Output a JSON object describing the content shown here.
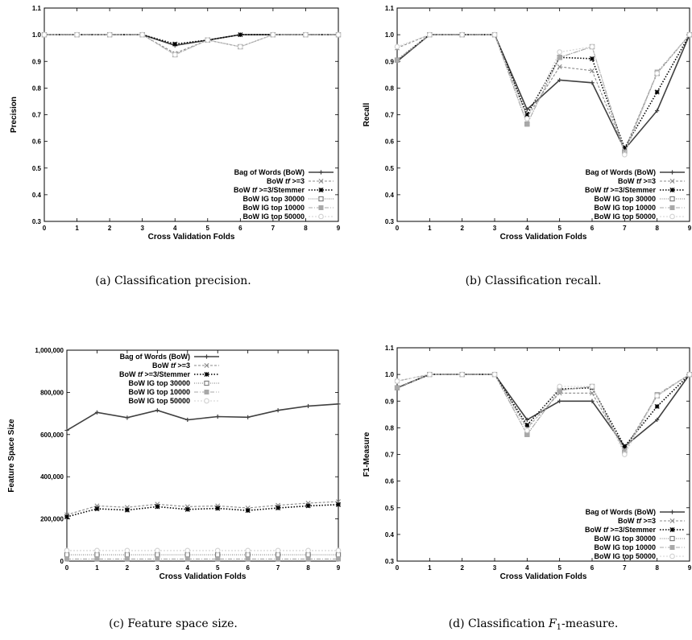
{
  "chart_data": [
    {
      "id": "a",
      "type": "line",
      "caption": "(a) Classification precision.",
      "xlabel": "Cross Validation Folds",
      "ylabel": "Precision",
      "xlim": [
        0,
        9
      ],
      "ylim": [
        0.3,
        1.1
      ],
      "xticks": [
        "0",
        "1",
        "2",
        "3",
        "4",
        "5",
        "6",
        "7",
        "8",
        "9"
      ],
      "yticks": [
        "0.3",
        "0.4",
        "0.5",
        "0.6",
        "0.7",
        "0.8",
        "0.9",
        "1.0",
        "1.1"
      ],
      "legend_position": "bottom-right",
      "x": [
        0,
        1,
        2,
        3,
        4,
        5,
        6,
        7,
        8,
        9
      ],
      "series": [
        {
          "name": "Bag of Words (BoW)",
          "values": [
            1.0,
            1.0,
            1.0,
            1.0,
            0.96,
            0.98,
            1.0,
            1.0,
            1.0,
            1.0
          ]
        },
        {
          "name": "BoW tf >=3",
          "values": [
            1.0,
            1.0,
            1.0,
            1.0,
            0.93,
            0.98,
            0.955,
            1.0,
            1.0,
            1.0
          ]
        },
        {
          "name": "BoW tf >=3/Stemmer",
          "values": [
            1.0,
            1.0,
            1.0,
            1.0,
            0.965,
            0.98,
            1.0,
            1.0,
            1.0,
            1.0
          ]
        },
        {
          "name": "BoW IG top 30000",
          "values": [
            1.0,
            1.0,
            1.0,
            1.0,
            0.925,
            0.98,
            0.955,
            1.0,
            1.0,
            1.0
          ]
        },
        {
          "name": "BoW IG top 10000",
          "values": [
            1.0,
            1.0,
            1.0,
            1.0,
            0.925,
            0.98,
            0.955,
            1.0,
            1.0,
            1.0
          ]
        },
        {
          "name": "BoW IG top 50000",
          "values": [
            1.0,
            1.0,
            1.0,
            1.0,
            0.925,
            0.98,
            0.955,
            1.0,
            1.0,
            1.0
          ]
        }
      ]
    },
    {
      "id": "b",
      "type": "line",
      "caption": "(b) Classification recall.",
      "xlabel": "Cross Validation Folds",
      "ylabel": "Recall",
      "xlim": [
        0,
        9
      ],
      "ylim": [
        0.3,
        1.1
      ],
      "xticks": [
        "0",
        "1",
        "2",
        "3",
        "4",
        "5",
        "6",
        "7",
        "8",
        "9"
      ],
      "yticks": [
        "0.3",
        "0.4",
        "0.5",
        "0.6",
        "0.7",
        "0.8",
        "0.9",
        "1.0",
        "1.1"
      ],
      "legend_position": "bottom-right",
      "x": [
        0,
        1,
        2,
        3,
        4,
        5,
        6,
        7,
        8,
        9
      ],
      "series": [
        {
          "name": "Bag of Words (BoW)",
          "values": [
            0.9,
            1.0,
            1.0,
            1.0,
            0.72,
            0.83,
            0.82,
            0.57,
            0.715,
            1.0
          ]
        },
        {
          "name": "BoW tf >=3",
          "values": [
            0.95,
            1.0,
            1.0,
            1.0,
            0.69,
            0.88,
            0.865,
            0.57,
            0.855,
            1.0
          ]
        },
        {
          "name": "BoW tf >=3/Stemmer",
          "values": [
            0.905,
            1.0,
            1.0,
            1.0,
            0.7,
            0.915,
            0.91,
            0.575,
            0.785,
            1.0
          ]
        },
        {
          "name": "BoW IG top 30000",
          "values": [
            0.905,
            1.0,
            1.0,
            1.0,
            0.665,
            0.915,
            0.955,
            0.56,
            0.855,
            1.0
          ]
        },
        {
          "name": "BoW IG top 10000",
          "values": [
            0.905,
            1.0,
            1.0,
            1.0,
            0.665,
            0.915,
            0.955,
            0.56,
            0.86,
            1.0
          ]
        },
        {
          "name": "BoW IG top 50000",
          "values": [
            0.955,
            1.0,
            1.0,
            1.0,
            0.685,
            0.935,
            0.955,
            0.55,
            0.855,
            1.0
          ]
        }
      ]
    },
    {
      "id": "c",
      "type": "line",
      "caption": "(c) Feature space size.",
      "xlabel": "Cross Validation Folds",
      "ylabel": "Feature Space Size",
      "xlim": [
        0,
        9
      ],
      "ylim": [
        0,
        1000000
      ],
      "xticks": [
        "0",
        "1",
        "2",
        "3",
        "4",
        "5",
        "6",
        "7",
        "8",
        "9"
      ],
      "yticks": [
        "0",
        "200,000",
        "400,000",
        "600,000",
        "800,000",
        "1,000,000"
      ],
      "legend_position": "top-left",
      "x": [
        0,
        1,
        2,
        3,
        4,
        5,
        6,
        7,
        8,
        9
      ],
      "series": [
        {
          "name": "Bag of Words (BoW)",
          "values": [
            620000,
            705000,
            680000,
            715000,
            670000,
            685000,
            682000,
            715000,
            735000,
            745000
          ]
        },
        {
          "name": "BoW tf >=3",
          "values": [
            220000,
            262000,
            255000,
            270000,
            258000,
            262000,
            252000,
            265000,
            275000,
            282000
          ]
        },
        {
          "name": "BoW tf >=3/Stemmer",
          "values": [
            210000,
            248000,
            242000,
            258000,
            245000,
            250000,
            240000,
            252000,
            262000,
            268000
          ]
        },
        {
          "name": "BoW IG top 30000",
          "values": [
            30000,
            30000,
            30000,
            30000,
            30000,
            30000,
            30000,
            30000,
            30000,
            30000
          ]
        },
        {
          "name": "BoW IG top 10000",
          "values": [
            10000,
            10000,
            10000,
            10000,
            10000,
            10000,
            10000,
            10000,
            10000,
            10000
          ]
        },
        {
          "name": "BoW IG top 50000",
          "values": [
            50000,
            50000,
            50000,
            50000,
            50000,
            50000,
            50000,
            50000,
            50000,
            50000
          ]
        }
      ]
    },
    {
      "id": "d",
      "type": "line",
      "caption": "(d) Classification F1-measure.",
      "xlabel": "Cross Validation Folds",
      "ylabel": "F1-Measure",
      "xlim": [
        0,
        9
      ],
      "ylim": [
        0.3,
        1.1
      ],
      "xticks": [
        "0",
        "1",
        "2",
        "3",
        "4",
        "5",
        "6",
        "7",
        "8",
        "9"
      ],
      "yticks": [
        "0.3",
        "0.4",
        "0.5",
        "0.6",
        "0.7",
        "0.8",
        "0.9",
        "1.0",
        "1.1"
      ],
      "legend_position": "bottom-right",
      "x": [
        0,
        1,
        2,
        3,
        4,
        5,
        6,
        7,
        8,
        9
      ],
      "series": [
        {
          "name": "Bag of Words (BoW)",
          "values": [
            0.95,
            1.0,
            1.0,
            1.0,
            0.83,
            0.9,
            0.9,
            0.73,
            0.83,
            1.0
          ]
        },
        {
          "name": "BoW tf >=3",
          "values": [
            0.975,
            1.0,
            1.0,
            1.0,
            0.8,
            0.93,
            0.93,
            0.72,
            0.92,
            1.0
          ]
        },
        {
          "name": "BoW tf >=3/Stemmer",
          "values": [
            0.95,
            1.0,
            1.0,
            1.0,
            0.81,
            0.945,
            0.95,
            0.73,
            0.88,
            1.0
          ]
        },
        {
          "name": "BoW IG top 30000",
          "values": [
            0.95,
            1.0,
            1.0,
            1.0,
            0.775,
            0.94,
            0.955,
            0.71,
            0.92,
            1.0
          ]
        },
        {
          "name": "BoW IG top 10000",
          "values": [
            0.95,
            1.0,
            1.0,
            1.0,
            0.775,
            0.94,
            0.955,
            0.71,
            0.925,
            1.0
          ]
        },
        {
          "name": "BoW IG top 50000",
          "values": [
            0.975,
            1.0,
            1.0,
            1.0,
            0.79,
            0.955,
            0.955,
            0.7,
            0.92,
            1.0
          ]
        }
      ]
    }
  ],
  "series_styles": [
    {
      "color": "#404040",
      "dash": "",
      "marker": "plus",
      "width": 1.6
    },
    {
      "color": "#8a8a8a",
      "dash": "3,2",
      "marker": "x",
      "width": 1.1
    },
    {
      "color": "#000000",
      "dash": "1.5,2",
      "marker": "star",
      "width": 1.6
    },
    {
      "color": "#777777",
      "dash": "1,1.5",
      "marker": "square-open",
      "width": 1.0
    },
    {
      "color": "#a8a8a8",
      "dash": "5,2,1,2",
      "marker": "square-filled",
      "width": 1.1
    },
    {
      "color": "#d0d0d0",
      "dash": "2,2",
      "marker": "circle-open",
      "width": 1.1
    }
  ],
  "legend_labels": [
    {
      "pre": "Bag of Words (BoW)",
      "tf": "",
      "post": ""
    },
    {
      "pre": "BoW ",
      "tf": "tf",
      "post": " >=3"
    },
    {
      "pre": "BoW ",
      "tf": "tf",
      "post": " >=3/Stemmer"
    },
    {
      "pre": "BoW IG top 30000",
      "tf": "",
      "post": ""
    },
    {
      "pre": "BoW IG top 10000",
      "tf": "",
      "post": ""
    },
    {
      "pre": "BoW IG top 50000",
      "tf": "",
      "post": ""
    }
  ],
  "captions": {
    "a": "(a) Classification precision.",
    "b": "(b) Classification recall.",
    "c": "(c) Feature space size.",
    "d_pre": "(d) Classification ",
    "d_sym": "F",
    "d_sub": "1",
    "d_post": "-measure."
  }
}
